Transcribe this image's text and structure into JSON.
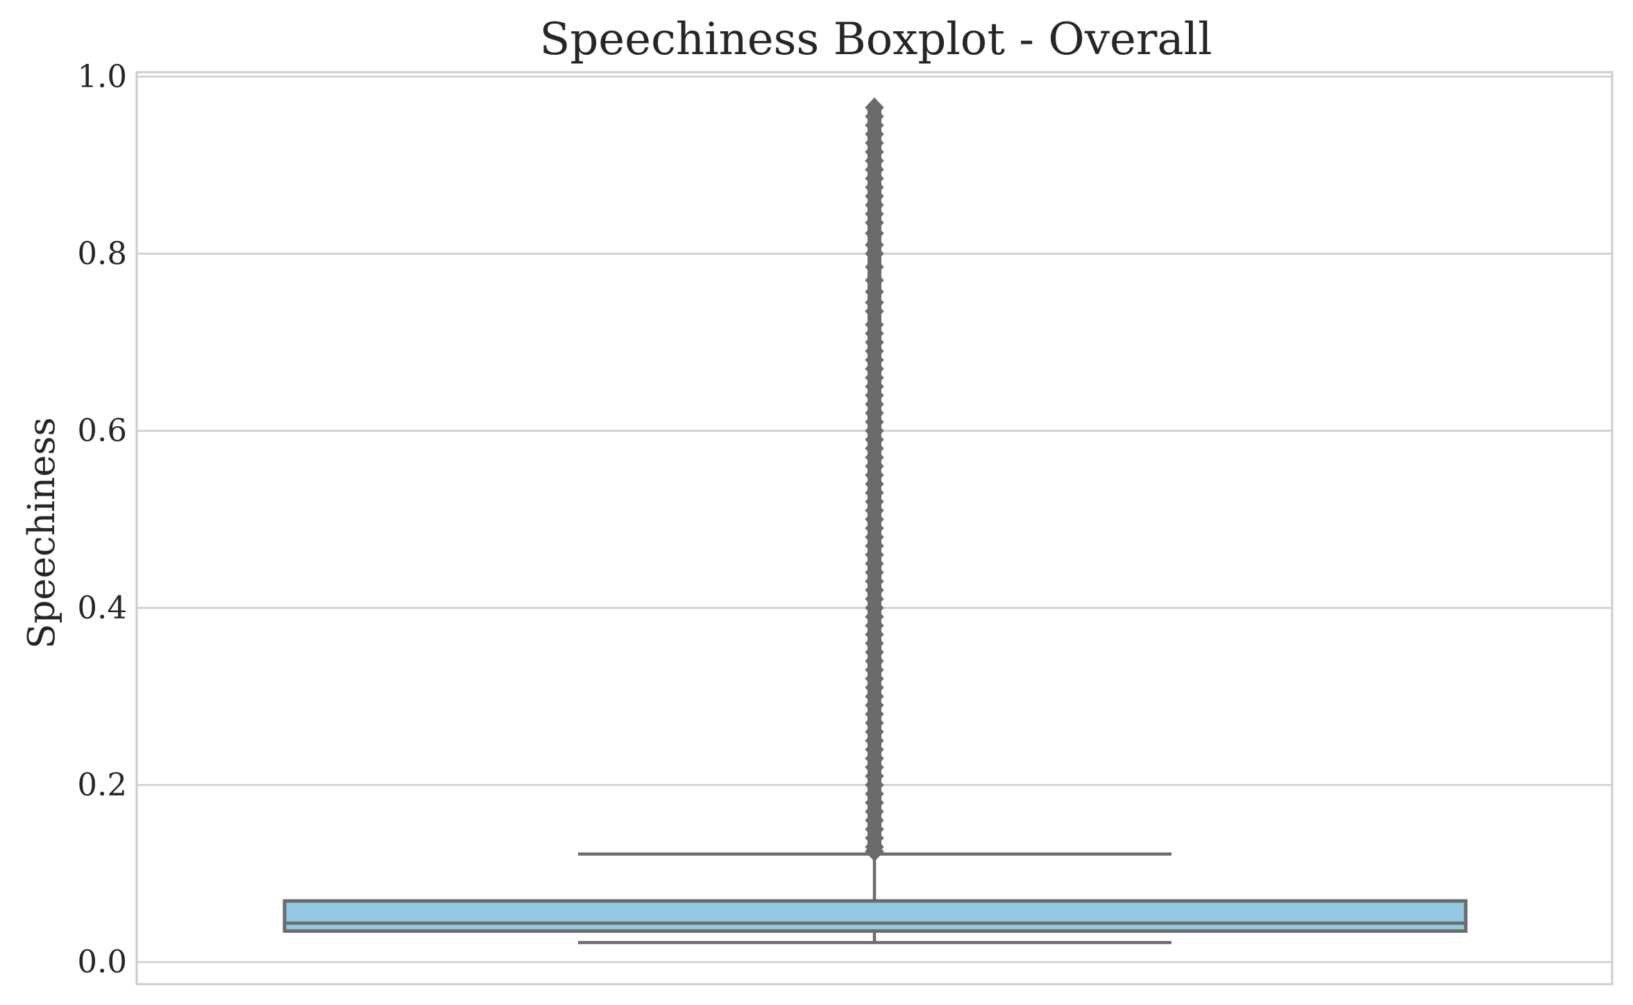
{
  "chart_data": {
    "type": "boxplot",
    "title": "Speechiness Boxplot - Overall",
    "xlabel": "",
    "ylabel": "Speechiness",
    "ylim": [
      -0.025,
      1.005
    ],
    "yticks": [
      0.0,
      0.2,
      0.4,
      0.6,
      0.8,
      1.0
    ],
    "ytick_labels": [
      "0.0",
      "0.2",
      "0.4",
      "0.6",
      "0.8",
      "1.0"
    ],
    "grid": true,
    "grid_axis": "y",
    "box": {
      "whisker_low": 0.022,
      "q1": 0.035,
      "median": 0.044,
      "q3": 0.069,
      "whisker_high": 0.122,
      "outlier_min": 0.122,
      "outlier_max": 0.965,
      "fill_color": "#92c8e0",
      "line_color": "#6b6b6b"
    },
    "outliers_sparse": [
      0.965,
      0.955,
      0.945,
      0.935,
      0.925,
      0.915,
      0.905,
      0.895,
      0.885,
      0.875,
      0.865,
      0.855,
      0.845,
      0.835,
      0.823,
      0.81,
      0.8,
      0.785,
      0.77,
      0.757,
      0.745,
      0.735,
      0.72,
      0.71,
      0.7,
      0.69,
      0.68,
      0.67,
      0.66,
      0.65,
      0.64,
      0.63,
      0.62,
      0.61,
      0.6,
      0.59,
      0.58,
      0.57,
      0.56,
      0.55,
      0.54,
      0.53,
      0.52,
      0.51,
      0.5,
      0.49,
      0.48,
      0.47,
      0.46,
      0.45,
      0.44,
      0.43,
      0.42,
      0.41,
      0.4,
      0.39,
      0.38,
      0.37,
      0.36,
      0.35,
      0.34,
      0.33,
      0.32,
      0.31,
      0.3,
      0.29,
      0.28,
      0.27,
      0.26,
      0.25,
      0.24,
      0.23,
      0.22,
      0.21,
      0.2,
      0.19,
      0.18,
      0.17,
      0.16,
      0.15,
      0.14,
      0.13,
      0.125
    ],
    "colors": {
      "grid": "#cccccc",
      "frame": "#cccccc",
      "text": "#262626"
    }
  }
}
